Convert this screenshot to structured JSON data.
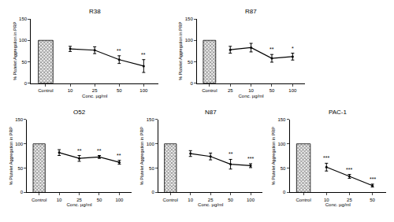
{
  "chart_data": [
    {
      "type": "bar",
      "title": "R38",
      "x_label": "Conc. µg/ml",
      "y_label": "% Platelet Aggregation in PRP",
      "categories": [
        "Control",
        "10",
        "25",
        "50",
        "100"
      ],
      "ylim": [
        0,
        150
      ],
      "yticks": [
        0,
        50,
        100,
        150
      ],
      "grid": false,
      "series": [
        {
          "type": "bar",
          "color": "#8c8c8c",
          "values": [
            100,
            null,
            null,
            null,
            null
          ]
        },
        {
          "type": "line",
          "color": "#000000",
          "marker": "circle",
          "line_style": "solid",
          "values": [
            null,
            80,
            77,
            55,
            40
          ],
          "errors": [
            null,
            6,
            8,
            9,
            15
          ],
          "significance": [
            null,
            null,
            null,
            "**",
            "**"
          ]
        }
      ]
    },
    {
      "type": "bar",
      "title": "R87",
      "x_label": "Conc. µg/ml",
      "y_label": "% Platelet Aggregation in PRP",
      "categories": [
        "Control",
        "25",
        "10",
        "50",
        "100"
      ],
      "ylim": [
        0,
        150
      ],
      "yticks": [
        0,
        50,
        100,
        150
      ],
      "grid": false,
      "series": [
        {
          "type": "bar",
          "color": "#8c8c8c",
          "values": [
            100,
            null,
            null,
            null,
            null
          ]
        },
        {
          "type": "line",
          "color": "#000000",
          "marker": "circle",
          "line_style": "solid",
          "values": [
            null,
            78,
            83,
            58,
            62
          ],
          "errors": [
            null,
            8,
            10,
            9,
            8
          ],
          "significance": [
            null,
            null,
            null,
            "**",
            "*"
          ]
        }
      ]
    },
    {
      "type": "bar",
      "title": "O52",
      "x_label": "Conc. µg/ml",
      "y_label": "% Platelet Aggregation in PRP",
      "categories": [
        "Control",
        "10",
        "25",
        "50",
        "100"
      ],
      "ylim": [
        0,
        150
      ],
      "yticks": [
        0,
        50,
        100,
        150
      ],
      "grid": false,
      "series": [
        {
          "type": "bar",
          "color": "#8c8c8c",
          "values": [
            100,
            null,
            null,
            null,
            null
          ]
        },
        {
          "type": "line",
          "color": "#000000",
          "marker": "circle",
          "line_style": "solid",
          "values": [
            null,
            82,
            70,
            73,
            62
          ],
          "errors": [
            null,
            6,
            6,
            3,
            4
          ],
          "significance": [
            null,
            null,
            "**",
            "**",
            "**"
          ]
        }
      ]
    },
    {
      "type": "bar",
      "title": "N87",
      "x_label": "Conc. µg/ml",
      "y_label": "% Platelet Aggregation in PRP",
      "categories": [
        "Control",
        "10",
        "25",
        "50",
        "100"
      ],
      "ylim": [
        0,
        150
      ],
      "yticks": [
        0,
        50,
        100,
        150
      ],
      "grid": false,
      "series": [
        {
          "type": "bar",
          "color": "#8c8c8c",
          "values": [
            100,
            null,
            null,
            null,
            null
          ]
        },
        {
          "type": "line",
          "color": "#000000",
          "marker": "circle",
          "line_style": "solid",
          "values": [
            null,
            80,
            74,
            58,
            55
          ],
          "errors": [
            null,
            6,
            7,
            10,
            4
          ],
          "significance": [
            null,
            null,
            null,
            "**",
            "***"
          ]
        }
      ]
    },
    {
      "type": "bar",
      "title": "PAC-1",
      "x_label": "Conc. µg/ml",
      "y_label": "% Platelet Aggregation in PRP",
      "categories": [
        "Control",
        "10",
        "25",
        "50"
      ],
      "ylim": [
        0,
        150
      ],
      "yticks": [
        0,
        50,
        100,
        150
      ],
      "grid": false,
      "series": [
        {
          "type": "bar",
          "color": "#8c8c8c",
          "values": [
            100,
            null,
            null,
            null
          ]
        },
        {
          "type": "line",
          "color": "#000000",
          "marker": "circle",
          "line_style": "solid",
          "values": [
            null,
            52,
            33,
            14
          ],
          "errors": [
            null,
            8,
            4,
            3
          ],
          "significance": [
            null,
            "***",
            "***",
            "***"
          ]
        }
      ]
    }
  ]
}
